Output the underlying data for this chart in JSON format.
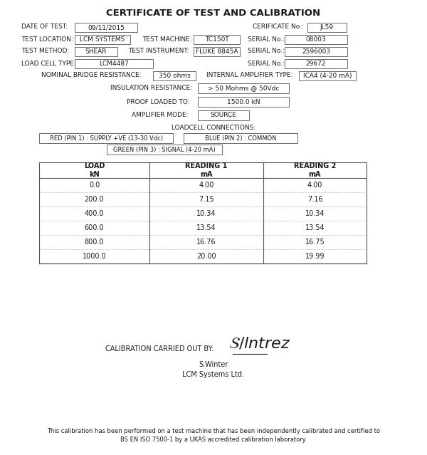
{
  "title": "CERTIFICATE OF TEST AND CALIBRATION",
  "fields": {
    "date_of_test": "09/11/2015",
    "certificate_no": "JL59",
    "test_location": "LCM SYSTEMS",
    "test_machine": "TC150T",
    "serial_no_1": "08003",
    "test_method": "SHEAR",
    "test_instrument": "FLUKE 8845A",
    "serial_no_2": "2596003",
    "load_cell_type": "LCM4487",
    "serial_no_3": "29672",
    "nominal_bridge_resistance": "350 ohms",
    "internal_amplifier_type": "ICA4 (4-20 mA)",
    "insulation_resistance": "> 50 Mohms @ 50Vdc",
    "proof_loaded_to": "1500.0 kN",
    "amplifier_mode": "SOURCE",
    "loadcell_conn_1": "RED (PIN 1) : SUPPLY +VE (13-30 Vdc)",
    "loadcell_conn_2": "BLUE (PIN 2) : COMMON",
    "loadcell_conn_3": "GREEN (PIN 3) : SIGNAL (4-20 mA)"
  },
  "table_headers": [
    "LOAD\nkN",
    "READING 1\nmA",
    "READING 2\nmA"
  ],
  "table_data": [
    [
      "0.0",
      "4.00",
      "4.00"
    ],
    [
      "200.0",
      "7.15",
      "7.16"
    ],
    [
      "400.0",
      "10.34",
      "10.34"
    ],
    [
      "600.0",
      "13.54",
      "13.54"
    ],
    [
      "800.0",
      "16.76",
      "16.75"
    ],
    [
      "1000.0",
      "20.00",
      "19.99"
    ]
  ],
  "calibration_by": "CALIBRATION CARRIED OUT BY:",
  "signer_name": "S.Winter",
  "signer_company": "LCM Systems Ltd.",
  "footer_line1": "This calibration has been performed on a test machine that has been independently calibrated and certified to",
  "footer_line2": "BS EN ISO 7500-1 by a UKAS accredited calibration laboratory.",
  "bg_color": "#ffffff",
  "text_color": "#1a1a1a",
  "box_color": "#ffffff",
  "box_edge": "#555555",
  "title_fontsize": 9.5,
  "body_fontsize": 6.5,
  "table_fontsize": 7.0
}
